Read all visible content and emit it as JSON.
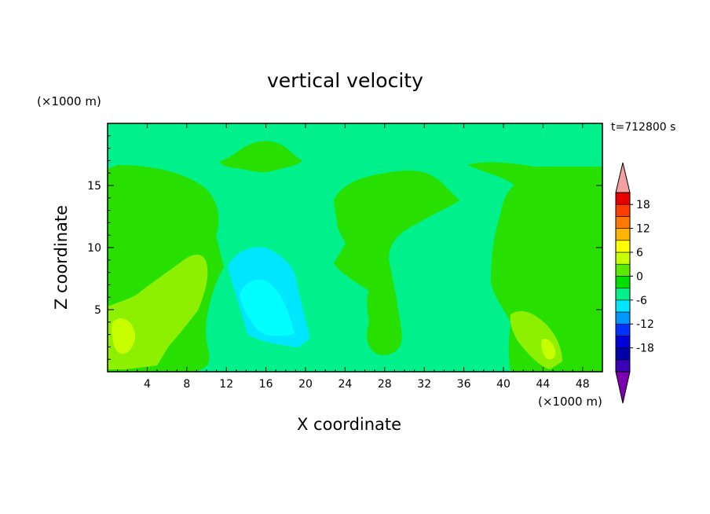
{
  "chart_data": {
    "type": "heatmap",
    "title": "vertical velocity",
    "xlabel": "X coordinate",
    "ylabel": "Z coordinate",
    "x_unit": "(×1000 m)",
    "z_unit": "(×1000 m)",
    "time_label": "t=712800 s",
    "xlim": [
      0,
      50
    ],
    "ylim": [
      0,
      20
    ],
    "x_ticks": [
      4,
      8,
      12,
      16,
      20,
      24,
      28,
      32,
      36,
      40,
      44,
      48
    ],
    "y_ticks": [
      5,
      10,
      15
    ],
    "colorbar": {
      "levels": [
        -21,
        -18,
        -15,
        -12,
        -9,
        -6,
        -3,
        0,
        3,
        6,
        9,
        12,
        15,
        18,
        21
      ],
      "tick_labels": [
        "18",
        "12",
        "6",
        "0",
        "-6",
        "-12",
        "-18"
      ],
      "tick_values": [
        18,
        12,
        6,
        0,
        -6,
        -12,
        -18
      ],
      "colors": [
        "#7b00b0",
        "#3c00b8",
        "#0000a8",
        "#0000d8",
        "#0032ff",
        "#0096ff",
        "#00e6ff",
        "#00f08c",
        "#00e000",
        "#5aea00",
        "#c8ff00",
        "#ffff00",
        "#ffb400",
        "#ff7800",
        "#ff3c00",
        "#e80000",
        "#f4a0a0"
      ],
      "extend": "both"
    },
    "regions": [
      {
        "value": 0,
        "desc": "background near zero"
      },
      {
        "value": 2,
        "desc": "left updraft block",
        "x_range": [
          0,
          11
        ],
        "z_range": [
          0,
          16.5
        ]
      },
      {
        "value": 2,
        "desc": "central updraft",
        "x_range": [
          23,
          35
        ],
        "z_range": [
          0,
          15.5
        ]
      },
      {
        "value": 2,
        "desc": "right updraft block",
        "x_range": [
          38,
          50
        ],
        "z_range": [
          0,
          16.5
        ]
      },
      {
        "value": 2,
        "desc": "upper patch",
        "x_range": [
          11,
          20
        ],
        "z_range": [
          16,
          18.5
        ]
      },
      {
        "value": -5,
        "desc": "downdraft core",
        "x_range": [
          12,
          20
        ],
        "z_range": [
          2,
          10
        ]
      },
      {
        "value": 7,
        "desc": "strong updraft left",
        "x_range": [
          0,
          10
        ],
        "z_range": [
          0,
          9
        ]
      },
      {
        "value": 7,
        "desc": "strong updraft right",
        "x_range": [
          40,
          48
        ],
        "z_range": [
          0,
          5
        ]
      }
    ]
  }
}
